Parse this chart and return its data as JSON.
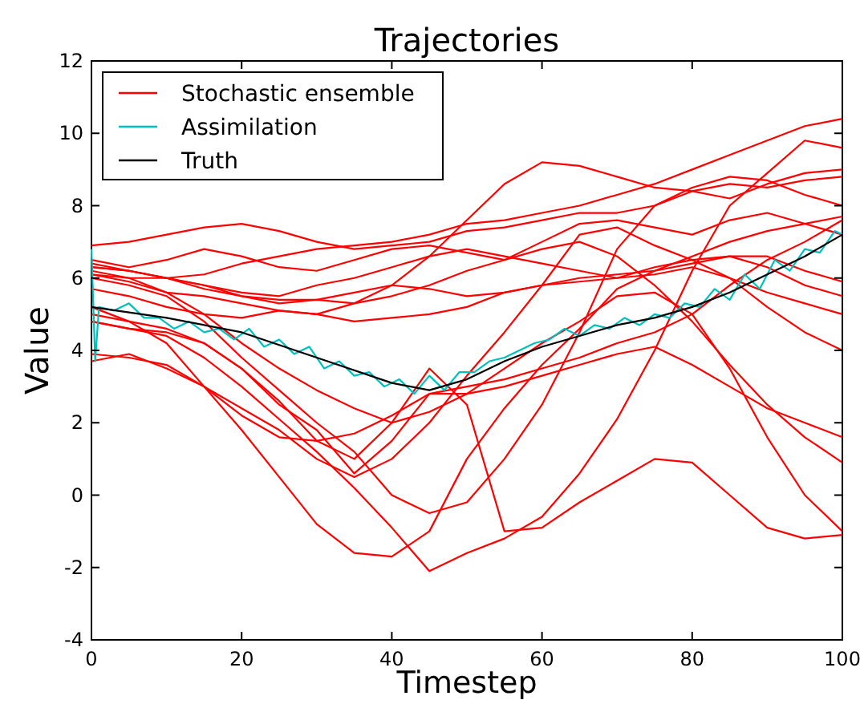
{
  "chart_data": {
    "type": "line",
    "title": "Trajectories",
    "xlabel": "Timestep",
    "ylabel": "Value",
    "x": [
      0,
      5,
      10,
      15,
      20,
      25,
      30,
      35,
      40,
      45,
      50,
      55,
      60,
      65,
      70,
      75,
      80,
      85,
      90,
      95,
      100
    ],
    "xlim": [
      0,
      100
    ],
    "xticks": [
      0,
      20,
      40,
      60,
      80,
      100
    ],
    "ylim": [
      -4,
      12
    ],
    "yticks": [
      -4,
      -2,
      0,
      2,
      4,
      6,
      8,
      10,
      12
    ],
    "grid": false,
    "legend": "top left",
    "marker": "none",
    "line_style": "solid",
    "series": [
      {
        "name": "Stochastic ensemble",
        "color": "#ff0000",
        "values": [
          6.3,
          6.2,
          6.0,
          6.1,
          6.4,
          6.6,
          6.8,
          6.9,
          7.0,
          7.2,
          7.5,
          7.6,
          7.8,
          8.0,
          8.3,
          8.6,
          9.0,
          9.4,
          9.8,
          10.2,
          10.4
        ]
      },
      {
        "color": "#ff0000",
        "values": [
          6.9,
          7.0,
          7.2,
          7.4,
          7.5,
          7.3,
          7.0,
          6.8,
          6.9,
          7.0,
          7.3,
          7.4,
          7.6,
          7.8,
          7.8,
          8.0,
          8.4,
          8.6,
          8.5,
          8.7,
          8.8
        ]
      },
      {
        "color": "#ff0000",
        "values": [
          6.5,
          6.3,
          6.5,
          6.8,
          6.6,
          6.3,
          6.2,
          6.5,
          6.8,
          6.9,
          6.7,
          6.5,
          7.0,
          7.5,
          7.6,
          7.4,
          7.2,
          7.6,
          7.8,
          7.5,
          7.2
        ]
      },
      {
        "color": "#ff0000",
        "values": [
          6.1,
          5.9,
          5.6,
          5.5,
          5.3,
          5.1,
          5.0,
          5.3,
          5.8,
          6.6,
          7.6,
          8.6,
          9.2,
          9.1,
          8.8,
          8.5,
          8.4,
          8.2,
          8.6,
          8.9,
          9.0
        ]
      },
      {
        "color": "#ff0000",
        "values": [
          6.2,
          6.0,
          6.0,
          5.8,
          5.6,
          5.5,
          5.8,
          6.0,
          6.3,
          6.6,
          6.8,
          6.6,
          6.4,
          6.2,
          6.0,
          6.1,
          6.3,
          6.0,
          5.6,
          5.3,
          5.0
        ]
      },
      {
        "color": "#ff0000",
        "values": [
          5.7,
          5.5,
          5.2,
          5.0,
          4.9,
          5.1,
          5.0,
          4.8,
          4.9,
          5.0,
          5.2,
          5.6,
          5.8,
          5.9,
          6.0,
          6.3,
          6.5,
          6.0,
          5.2,
          4.5,
          4.0
        ]
      },
      {
        "color": "#ff0000",
        "values": [
          3.9,
          3.8,
          3.6,
          3.0,
          2.2,
          1.6,
          1.5,
          1.7,
          2.2,
          2.8,
          3.0,
          3.2,
          3.5,
          3.8,
          4.2,
          4.5,
          5.0,
          5.8,
          6.5,
          7.0,
          7.6
        ]
      },
      {
        "color": "#ff0000",
        "values": [
          3.7,
          3.9,
          3.5,
          3.0,
          2.4,
          1.8,
          1.0,
          0.5,
          1.0,
          2.0,
          3.3,
          4.5,
          5.8,
          7.2,
          7.4,
          6.9,
          6.5,
          6.6,
          6.3,
          5.8,
          5.5
        ]
      },
      {
        "color": "#ff0000",
        "values": [
          6.0,
          5.8,
          5.5,
          4.8,
          3.8,
          2.9,
          2.0,
          1.2,
          0.0,
          -0.5,
          -0.2,
          1.0,
          2.5,
          4.5,
          6.8,
          8.0,
          8.5,
          8.8,
          8.7,
          8.3,
          8.0
        ]
      },
      {
        "color": "#ff0000",
        "values": [
          5.2,
          4.8,
          4.2,
          3.0,
          1.8,
          0.5,
          -0.8,
          -1.6,
          -1.7,
          -1.0,
          1.0,
          2.4,
          3.6,
          4.6,
          5.7,
          6.2,
          6.6,
          7.0,
          7.3,
          7.5,
          7.7
        ]
      },
      {
        "color": "#ff0000",
        "values": [
          4.8,
          4.6,
          4.4,
          3.8,
          3.0,
          2.1,
          1.2,
          0.2,
          -0.9,
          -2.1,
          -1.6,
          -1.2,
          -0.6,
          0.6,
          2.1,
          4.0,
          6.2,
          8.0,
          8.9,
          9.8,
          9.6
        ]
      },
      {
        "color": "#ff0000",
        "values": [
          5.0,
          4.8,
          4.6,
          4.2,
          3.5,
          2.6,
          1.5,
          1.0,
          2.0,
          3.5,
          2.5,
          -1.0,
          -0.9,
          -0.2,
          0.4,
          1.0,
          0.9,
          0.0,
          -0.9,
          -1.2,
          -1.1
        ]
      },
      {
        "color": "#ff0000",
        "values": [
          6.4,
          6.2,
          6.0,
          5.8,
          5.5,
          5.3,
          5.4,
          5.3,
          5.5,
          5.8,
          6.2,
          6.5,
          6.8,
          7.0,
          6.6,
          5.8,
          4.8,
          3.6,
          2.5,
          1.6,
          0.9
        ]
      },
      {
        "color": "#ff0000",
        "values": [
          6.1,
          6.0,
          5.6,
          5.0,
          4.2,
          3.5,
          2.9,
          2.4,
          2.0,
          2.3,
          2.8,
          3.5,
          4.2,
          4.8,
          5.5,
          5.6,
          5.0,
          3.5,
          1.6,
          0.0,
          -1.0
        ]
      },
      {
        "color": "#ff0000",
        "values": [
          6.3,
          6.2,
          6.0,
          5.7,
          5.5,
          5.4,
          5.4,
          5.6,
          5.8,
          5.7,
          5.5,
          5.6,
          5.8,
          6.0,
          6.1,
          6.2,
          6.4,
          6.6,
          6.6,
          6.2,
          5.9
        ]
      },
      {
        "color": "#ff0000",
        "values": [
          4.8,
          4.6,
          4.5,
          4.2,
          3.5,
          2.5,
          1.8,
          0.6,
          1.5,
          2.8,
          2.8,
          3.0,
          3.3,
          3.6,
          3.9,
          4.1,
          3.6,
          3.0,
          2.4,
          2.0,
          1.6
        ]
      },
      {
        "name": "Assimilation",
        "color": "#00bfbf",
        "x": [
          0,
          0.5,
          1,
          3,
          5,
          7,
          9,
          11,
          13,
          15,
          17,
          19,
          21,
          23,
          25,
          27,
          29,
          31,
          33,
          35,
          37,
          39,
          41,
          43,
          45,
          47,
          49,
          51,
          53,
          55,
          57,
          59,
          61,
          63,
          65,
          67,
          69,
          71,
          73,
          75,
          77,
          79,
          81,
          83,
          85,
          87,
          89,
          91,
          93,
          95,
          97,
          99,
          100
        ],
        "values": [
          6.8,
          3.7,
          5.2,
          5.1,
          5.3,
          4.9,
          4.9,
          4.6,
          4.8,
          4.5,
          4.6,
          4.3,
          4.6,
          4.1,
          4.3,
          3.9,
          4.1,
          3.5,
          3.7,
          3.3,
          3.4,
          3.0,
          3.2,
          2.8,
          3.3,
          2.9,
          3.4,
          3.4,
          3.7,
          3.8,
          4.0,
          4.2,
          4.3,
          4.6,
          4.4,
          4.7,
          4.6,
          4.9,
          4.7,
          5.0,
          4.9,
          5.3,
          5.2,
          5.7,
          5.4,
          6.1,
          5.7,
          6.5,
          6.2,
          6.8,
          6.7,
          7.3,
          7.2
        ]
      },
      {
        "name": "Truth",
        "color": "#000000",
        "x": [
          0,
          10,
          20,
          30,
          40,
          45,
          50,
          55,
          60,
          65,
          70,
          75,
          80,
          85,
          90,
          95,
          100
        ],
        "values": [
          5.2,
          4.9,
          4.5,
          3.8,
          3.1,
          2.9,
          3.2,
          3.7,
          4.1,
          4.4,
          4.7,
          4.9,
          5.2,
          5.6,
          6.1,
          6.6,
          7.2
        ]
      }
    ]
  }
}
